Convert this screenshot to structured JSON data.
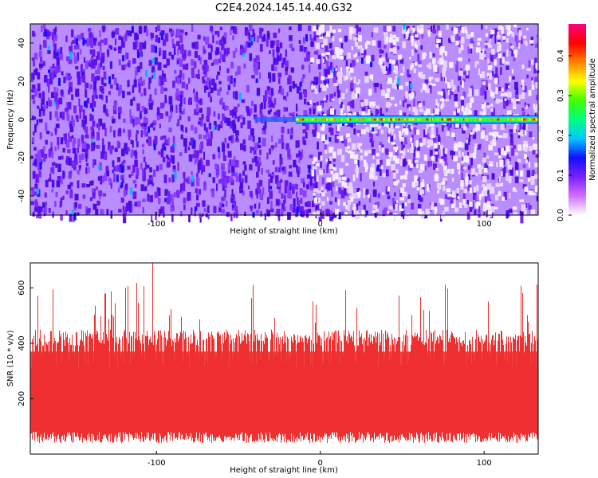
{
  "title": "C2E4.2024.145.14.40.G32",
  "chart_data": [
    {
      "type": "heatmap",
      "xlabel": "Height of straight line (km)",
      "ylabel": "Frequency (Hz)",
      "xlim": [
        -177,
        133
      ],
      "ylim": [
        -50,
        50
      ],
      "xticks": [
        -100,
        0,
        100
      ],
      "yticks": [
        -40,
        -20,
        0,
        20,
        40
      ],
      "colorbar": {
        "label": "Normalized spectral amplitude",
        "range": [
          0.0,
          0.48
        ],
        "ticks": [
          0.0,
          0.1,
          0.2,
          0.3,
          0.4
        ],
        "colors": [
          "#ffffff",
          "#d070ff",
          "#7a20ff",
          "#1010ff",
          "#00c8ff",
          "#00ff80",
          "#40ff00",
          "#ffff00",
          "#ff8000",
          "#ff0000",
          "#ff0080"
        ]
      },
      "signal_track": {
        "frequency": 0,
        "x_start": -40,
        "x_end": 133,
        "peak_amplitude": 0.45
      },
      "grid": false
    },
    {
      "type": "line",
      "xlabel": "Height of straight line (km)",
      "ylabel": "SNR (10 * v/v)",
      "xlim": [
        -177,
        133
      ],
      "ylim": [
        0,
        690
      ],
      "xticks": [
        -100,
        0,
        100
      ],
      "yticks": [
        200,
        400,
        600
      ],
      "color": "#ee3030",
      "band_low": 60,
      "band_high": 420,
      "spike_max": 690,
      "grid": false
    }
  ]
}
